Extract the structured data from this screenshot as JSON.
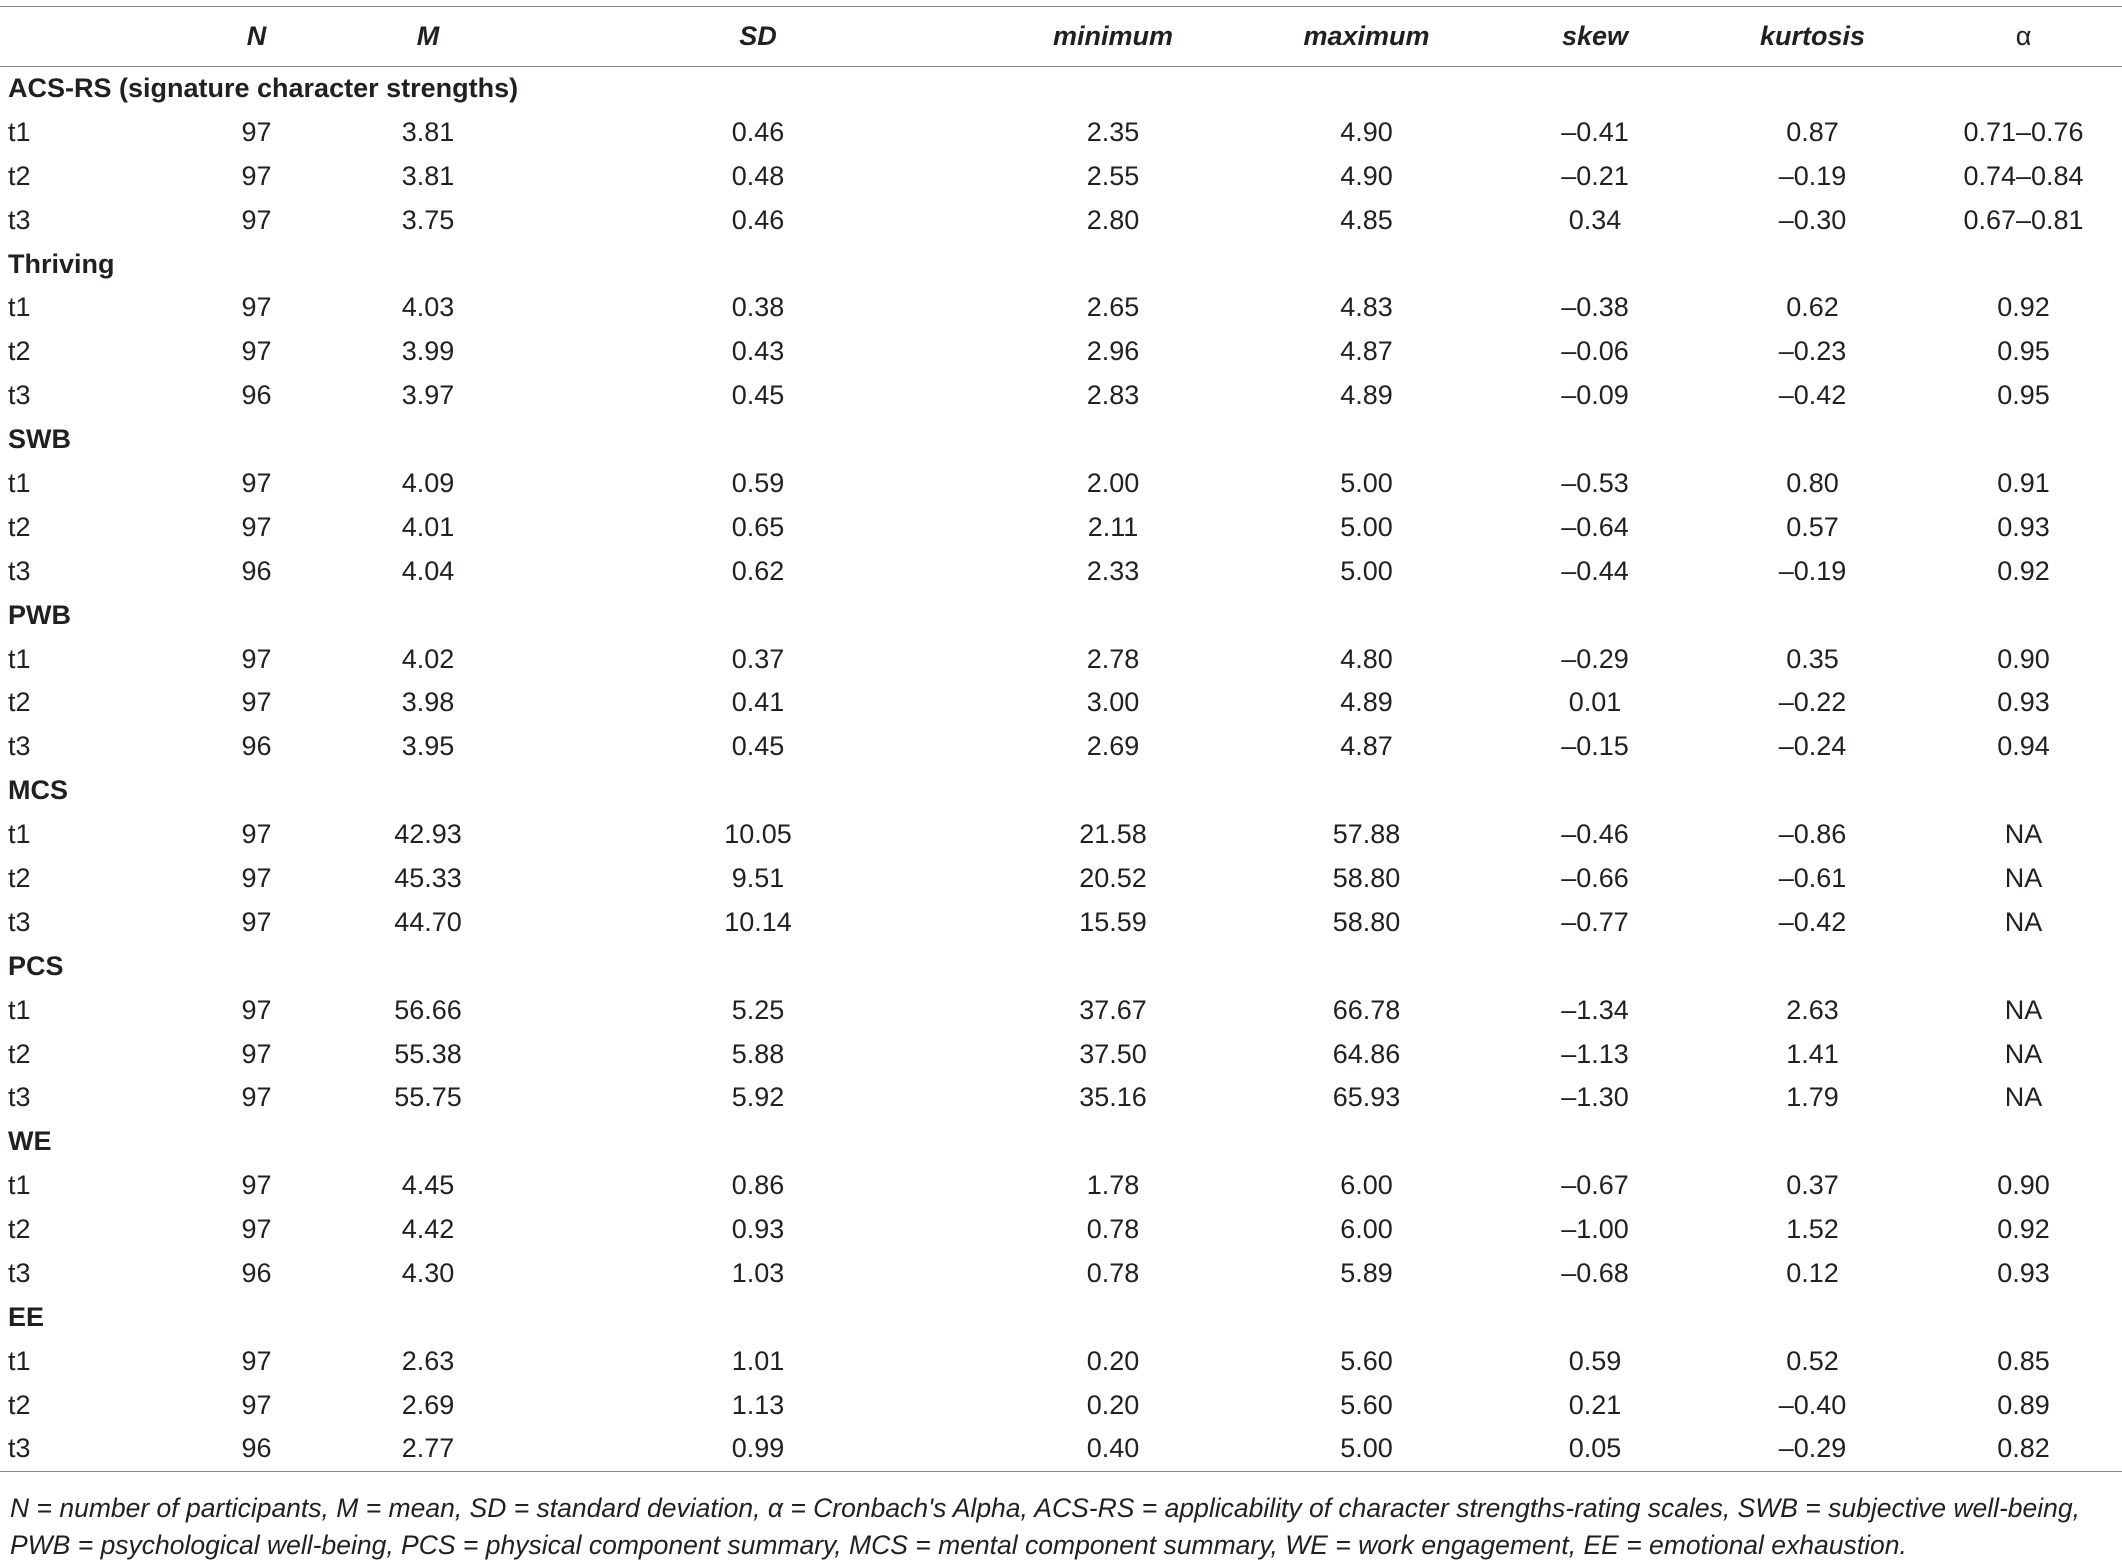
{
  "headers": [
    "",
    "N",
    "M",
    "SD",
    "minimum",
    "maximum",
    "skew",
    "kurtosis",
    "α"
  ],
  "groups": [
    {
      "name": "ACS-RS (signature character strengths)",
      "rows": [
        [
          "t1",
          "97",
          "3.81",
          "0.46",
          "2.35",
          "4.90",
          "–0.41",
          "0.87",
          "0.71–0.76"
        ],
        [
          "t2",
          "97",
          "3.81",
          "0.48",
          "2.55",
          "4.90",
          "–0.21",
          "–0.19",
          "0.74–0.84"
        ],
        [
          "t3",
          "97",
          "3.75",
          "0.46",
          "2.80",
          "4.85",
          "0.34",
          "–0.30",
          "0.67–0.81"
        ]
      ]
    },
    {
      "name": "Thriving",
      "rows": [
        [
          "t1",
          "97",
          "4.03",
          "0.38",
          "2.65",
          "4.83",
          "–0.38",
          "0.62",
          "0.92"
        ],
        [
          "t2",
          "97",
          "3.99",
          "0.43",
          "2.96",
          "4.87",
          "–0.06",
          "–0.23",
          "0.95"
        ],
        [
          "t3",
          "96",
          "3.97",
          "0.45",
          "2.83",
          "4.89",
          "–0.09",
          "–0.42",
          "0.95"
        ]
      ]
    },
    {
      "name": "SWB",
      "rows": [
        [
          "t1",
          "97",
          "4.09",
          "0.59",
          "2.00",
          "5.00",
          "–0.53",
          "0.80",
          "0.91"
        ],
        [
          "t2",
          "97",
          "4.01",
          "0.65",
          "2.11",
          "5.00",
          "–0.64",
          "0.57",
          "0.93"
        ],
        [
          "t3",
          "96",
          "4.04",
          "0.62",
          "2.33",
          "5.00",
          "–0.44",
          "–0.19",
          "0.92"
        ]
      ]
    },
    {
      "name": "PWB",
      "rows": [
        [
          "t1",
          "97",
          "4.02",
          "0.37",
          "2.78",
          "4.80",
          "–0.29",
          "0.35",
          "0.90"
        ],
        [
          "t2",
          "97",
          "3.98",
          "0.41",
          "3.00",
          "4.89",
          "0.01",
          "–0.22",
          "0.93"
        ],
        [
          "t3",
          "96",
          "3.95",
          "0.45",
          "2.69",
          "4.87",
          "–0.15",
          "–0.24",
          "0.94"
        ]
      ]
    },
    {
      "name": "MCS",
      "rows": [
        [
          "t1",
          "97",
          "42.93",
          "10.05",
          "21.58",
          "57.88",
          "–0.46",
          "–0.86",
          "NA"
        ],
        [
          "t2",
          "97",
          "45.33",
          "9.51",
          "20.52",
          "58.80",
          "–0.66",
          "–0.61",
          "NA"
        ],
        [
          "t3",
          "97",
          "44.70",
          "10.14",
          "15.59",
          "58.80",
          "–0.77",
          "–0.42",
          "NA"
        ]
      ]
    },
    {
      "name": "PCS",
      "rows": [
        [
          "t1",
          "97",
          "56.66",
          "5.25",
          "37.67",
          "66.78",
          "–1.34",
          "2.63",
          "NA"
        ],
        [
          "t2",
          "97",
          "55.38",
          "5.88",
          "37.50",
          "64.86",
          "–1.13",
          "1.41",
          "NA"
        ],
        [
          "t3",
          "97",
          "55.75",
          "5.92",
          "35.16",
          "65.93",
          "–1.30",
          "1.79",
          "NA"
        ]
      ]
    },
    {
      "name": "WE",
      "rows": [
        [
          "t1",
          "97",
          "4.45",
          "0.86",
          "1.78",
          "6.00",
          "–0.67",
          "0.37",
          "0.90"
        ],
        [
          "t2",
          "97",
          "4.42",
          "0.93",
          "0.78",
          "6.00",
          "–1.00",
          "1.52",
          "0.92"
        ],
        [
          "t3",
          "96",
          "4.30",
          "1.03",
          "0.78",
          "5.89",
          "–0.68",
          "0.12",
          "0.93"
        ]
      ]
    },
    {
      "name": "EE",
      "rows": [
        [
          "t1",
          "97",
          "2.63",
          "1.01",
          "0.20",
          "5.60",
          "0.59",
          "0.52",
          "0.85"
        ],
        [
          "t2",
          "97",
          "2.69",
          "1.13",
          "0.20",
          "5.60",
          "0.21",
          "–0.40",
          "0.89"
        ],
        [
          "t3",
          "96",
          "2.77",
          "0.99",
          "0.40",
          "5.00",
          "0.05",
          "–0.29",
          "0.82"
        ]
      ]
    }
  ],
  "note": "N = number of participants, M = mean, SD = standard deviation, α = Cronbach's Alpha, ACS-RS = applicability of character strengths-rating scales, SWB = subjective well-being, PWB = psychological well-being, PCS = physical component summary, MCS = mental component summary, WE = work engagement, EE = emotional exhaustion."
}
